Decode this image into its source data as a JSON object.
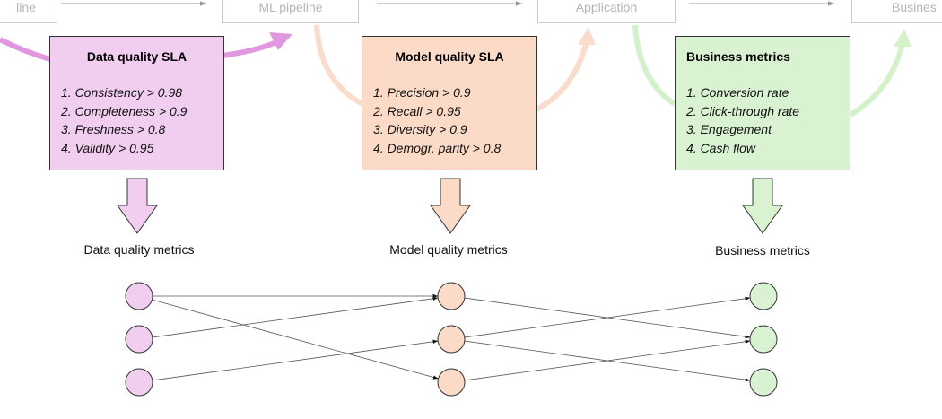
{
  "colors": {
    "data": "#f1cdf0",
    "data_stroke": "#e197df",
    "model": "#fbdac7",
    "model_stroke": "#f9dccb",
    "business": "#d9f3d2",
    "business_stroke": "#d4f1cc",
    "top_text": "#b5b5b5"
  },
  "pipeline": {
    "boxes": [
      {
        "label": "line"
      },
      {
        "label": "ML pipeline"
      },
      {
        "label": "Application"
      },
      {
        "label": "Busines"
      }
    ]
  },
  "sla_boxes": [
    {
      "title": "Data quality SLA",
      "items": [
        "1. Consistency > 0.98",
        "2. Completeness > 0.9",
        "3. Freshness > 0.8",
        "4. Validity > 0.95"
      ]
    },
    {
      "title": "Model quality SLA",
      "items": [
        "1. Precision > 0.9",
        "2. Recall > 0.95",
        "3. Diversity > 0.9",
        "4. Demogr. parity > 0.8"
      ]
    },
    {
      "title": "Business metrics",
      "items": [
        "1. Conversion rate",
        "2. Click-through rate",
        "3. Engagement",
        "4. Cash flow"
      ]
    }
  ],
  "metric_labels": [
    "Data quality metrics",
    "Model quality metrics",
    "Business metrics"
  ],
  "graph_edges": {
    "data_to_model": [
      [
        0,
        0
      ],
      [
        0,
        2
      ],
      [
        1,
        0
      ],
      [
        2,
        1
      ]
    ],
    "model_to_business": [
      [
        0,
        1
      ],
      [
        1,
        0
      ],
      [
        1,
        2
      ],
      [
        2,
        1
      ]
    ]
  }
}
